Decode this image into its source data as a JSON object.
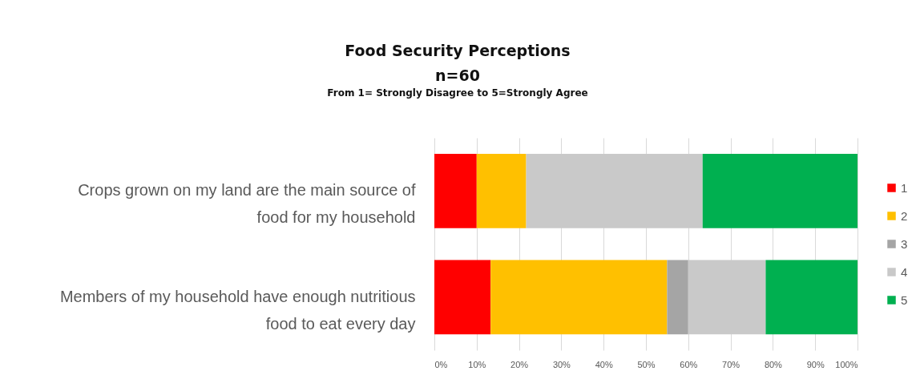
{
  "chart_data": {
    "type": "bar",
    "orientation": "horizontal",
    "stacked": true,
    "title": "Food Security Perceptions",
    "subtitle": "n=60",
    "annotations": [
      "From 1= Strongly Disagree to 5=Strongly Agree"
    ],
    "categories": [
      "Crops grown on my land are the main source of food for my household",
      "Members of my household have enough nutritious food to eat every day"
    ],
    "series": [
      {
        "name": "1",
        "color": "#ff0000",
        "values": [
          10,
          13.3
        ]
      },
      {
        "name": "2",
        "color": "#ffc000",
        "values": [
          11.7,
          41.7
        ]
      },
      {
        "name": "3",
        "color": "#a5a5a5",
        "values": [
          0,
          5
        ]
      },
      {
        "name": "4",
        "color": "#c9c9c9",
        "values": [
          41.7,
          18.3
        ]
      },
      {
        "name": "5",
        "color": "#00b050",
        "values": [
          36.6,
          21.7
        ]
      }
    ],
    "xlim": [
      0,
      100
    ],
    "xticks": [
      {
        "value": 0,
        "label": "0%"
      },
      {
        "value": 10,
        "label": "10%"
      },
      {
        "value": 20,
        "label": "20%"
      },
      {
        "value": 30,
        "label": "30%"
      },
      {
        "value": 40,
        "label": "40%"
      },
      {
        "value": 50,
        "label": "50%"
      },
      {
        "value": 60,
        "label": "60%"
      },
      {
        "value": 70,
        "label": "70%"
      },
      {
        "value": 80,
        "label": "80%"
      },
      {
        "value": 90,
        "label": "90%"
      },
      {
        "value": 100,
        "label": "100%"
      }
    ],
    "grid": "x",
    "legend": "right"
  }
}
